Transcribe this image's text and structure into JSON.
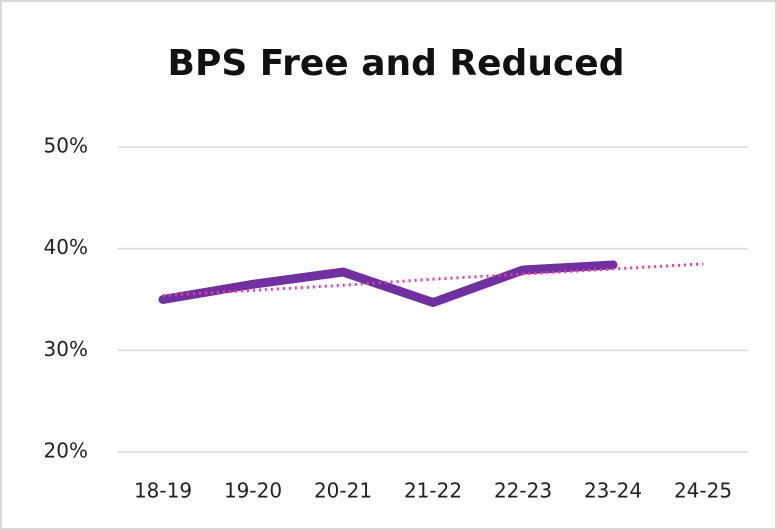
{
  "chart_data": {
    "type": "line",
    "title": "BPS Free and Reduced",
    "categories": [
      "18-19",
      "19-20",
      "20-21",
      "21-22",
      "22-23",
      "23-24",
      "24-25"
    ],
    "series": [
      {
        "color": "#7030a0",
        "values": [
          35,
          36.5,
          37.7,
          34.7,
          37.9,
          38.4,
          null
        ]
      }
    ],
    "trendline": {
      "color": "#e040a0",
      "style": "dotted",
      "values": [
        35.4,
        35.9,
        36.4,
        37.0,
        37.5,
        38.0,
        38.5
      ]
    },
    "ylim": [
      20,
      50
    ],
    "yticks": [
      {
        "value": 20,
        "label": "20%"
      },
      {
        "value": 30,
        "label": "30%"
      },
      {
        "value": 40,
        "label": "40%"
      },
      {
        "value": 50,
        "label": "50%"
      }
    ],
    "grid": true
  }
}
